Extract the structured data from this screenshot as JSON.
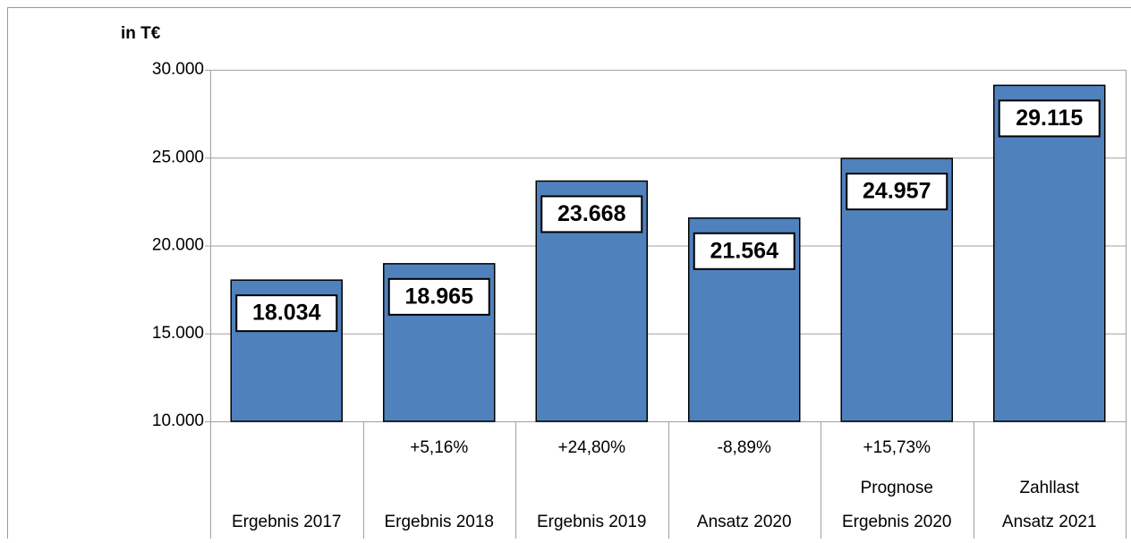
{
  "chart_data": {
    "type": "bar",
    "ylabel": "in T€",
    "categories": [
      "Ergebnis 2017",
      "Ergebnis 2018",
      "Ergebnis 2019",
      "Ansatz 2020",
      "Ergebnis 2020",
      "Ansatz 2021"
    ],
    "category_notes": [
      null,
      null,
      null,
      null,
      "Prognose",
      "Zahllast"
    ],
    "change_labels": [
      null,
      "+5,16%",
      "+24,80%",
      "-8,89%",
      "+15,73%",
      null
    ],
    "values": [
      18034,
      18965,
      23668,
      21564,
      24957,
      29115
    ],
    "value_labels": [
      "18.034",
      "18.965",
      "23.668",
      "21.564",
      "24.957",
      "29.115"
    ],
    "color": "#4f81bd",
    "ylim": [
      10000,
      30000
    ],
    "yticks": [
      {
        "value": 10000,
        "label": "10.000"
      },
      {
        "value": 15000,
        "label": "15.000"
      },
      {
        "value": 20000,
        "label": "20.000"
      },
      {
        "value": 25000,
        "label": "25.000"
      },
      {
        "value": 30000,
        "label": "30.000"
      }
    ],
    "grid": true
  }
}
